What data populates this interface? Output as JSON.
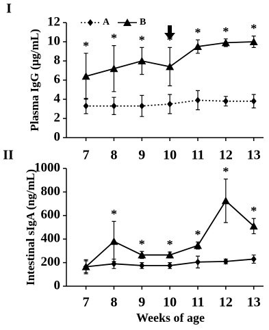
{
  "chart_data": [
    {
      "type": "line",
      "panel_label": "I",
      "y_label": "Plasma IgG (µg/mL)",
      "x": [
        7,
        8,
        9,
        10,
        11,
        12,
        13
      ],
      "xlim": [
        6.3,
        13.35
      ],
      "xticks": [
        7,
        8,
        9,
        10,
        11,
        12,
        13
      ],
      "ylim": [
        0,
        12
      ],
      "yticks": [
        0,
        2,
        4,
        6,
        8,
        10,
        12
      ],
      "legend": "top-left",
      "series": [
        {
          "name": "A",
          "color": "#000000",
          "line": "dotted",
          "marker": "diamond",
          "values": [
            3.3,
            3.3,
            3.3,
            3.5,
            3.9,
            3.8,
            3.8
          ],
          "errors": [
            0.8,
            0.9,
            1.1,
            1.0,
            1.0,
            0.5,
            0.7
          ]
        },
        {
          "name": "B",
          "color": "#000000",
          "line": "solid",
          "marker": "triangle",
          "values": [
            6.4,
            7.2,
            8.0,
            7.4,
            9.5,
            9.9,
            10.0
          ],
          "errors": [
            2.4,
            2.4,
            1.4,
            2.0,
            0.7,
            0.4,
            0.6
          ],
          "significance": [
            "*",
            "*",
            "*",
            "*",
            "*",
            "*",
            "*"
          ]
        }
      ]
    },
    {
      "type": "line",
      "panel_label": "II",
      "y_label": "Intestinal sIgA (ng/mL)",
      "x_label": "Weeks of age",
      "x": [
        7,
        8,
        9,
        10,
        11,
        12,
        13
      ],
      "xlim": [
        6.3,
        13.35
      ],
      "xticks": [
        7,
        8,
        9,
        10,
        11,
        12,
        13
      ],
      "ylim": [
        0,
        1000
      ],
      "yticks": [
        0,
        200,
        400,
        600,
        800,
        1000
      ],
      "series": [
        {
          "color": "#000000",
          "line": "solid",
          "marker": "diamond",
          "values": [
            165,
            190,
            175,
            175,
            205,
            210,
            230
          ],
          "errors": [
            50,
            40,
            25,
            25,
            50,
            20,
            35
          ]
        },
        {
          "color": "#000000",
          "line": "solid",
          "marker": "triangle",
          "values": [
            165,
            380,
            265,
            265,
            345,
            725,
            510
          ],
          "errors": [
            60,
            170,
            30,
            25,
            30,
            185,
            65
          ],
          "significance": [
            null,
            "*",
            "*",
            "*",
            "*",
            "*",
            "*"
          ]
        }
      ]
    }
  ]
}
